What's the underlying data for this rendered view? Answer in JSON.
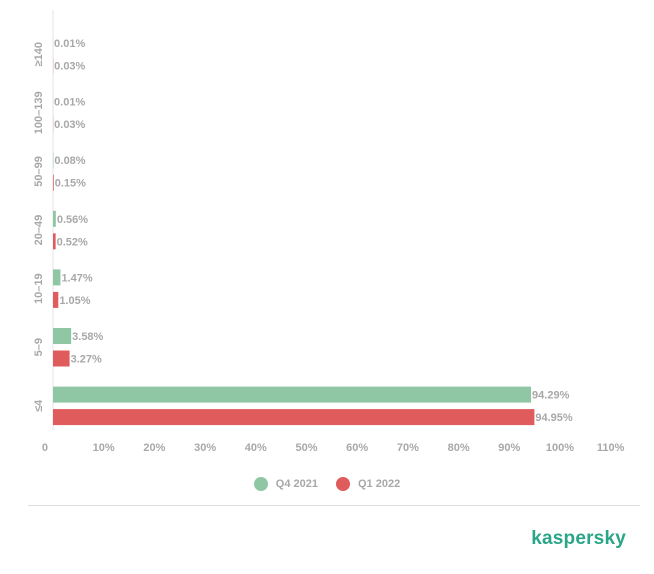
{
  "chart_data": {
    "type": "bar",
    "orientation": "horizontal",
    "categories": [
      "≥140",
      "100–139",
      "50–99",
      "20–49",
      "10–19",
      "5–9",
      "≤4"
    ],
    "series": [
      {
        "name": "Q4 2021",
        "color": "#8fc6a3",
        "values": [
          0.01,
          0.01,
          0.08,
          0.56,
          1.47,
          3.58,
          94.29
        ],
        "labels": [
          "0.01%",
          "0.01%",
          "0.08%",
          "0.56%",
          "1.47%",
          "3.58%",
          "94.29%"
        ]
      },
      {
        "name": "Q1 2022",
        "color": "#e05b5b",
        "values": [
          0.03,
          0.03,
          0.15,
          0.52,
          1.05,
          3.27,
          94.95
        ],
        "labels": [
          "0.03%",
          "0.03%",
          "0.15%",
          "0.52%",
          "1.05%",
          "3.27%",
          "94.95%"
        ]
      }
    ],
    "xlim": [
      0,
      110
    ],
    "xticks": [
      "0",
      "10%",
      "20%",
      "30%",
      "40%",
      "50%",
      "60%",
      "70%",
      "80%",
      "90%",
      "100%",
      "110%"
    ],
    "grid": false,
    "legend_position": "bottom-center"
  },
  "legend": {
    "q4": "Q4 2021",
    "q1": "Q1 2022"
  },
  "brand": {
    "logo_text": "kaspersky",
    "color": "#2aa588"
  }
}
